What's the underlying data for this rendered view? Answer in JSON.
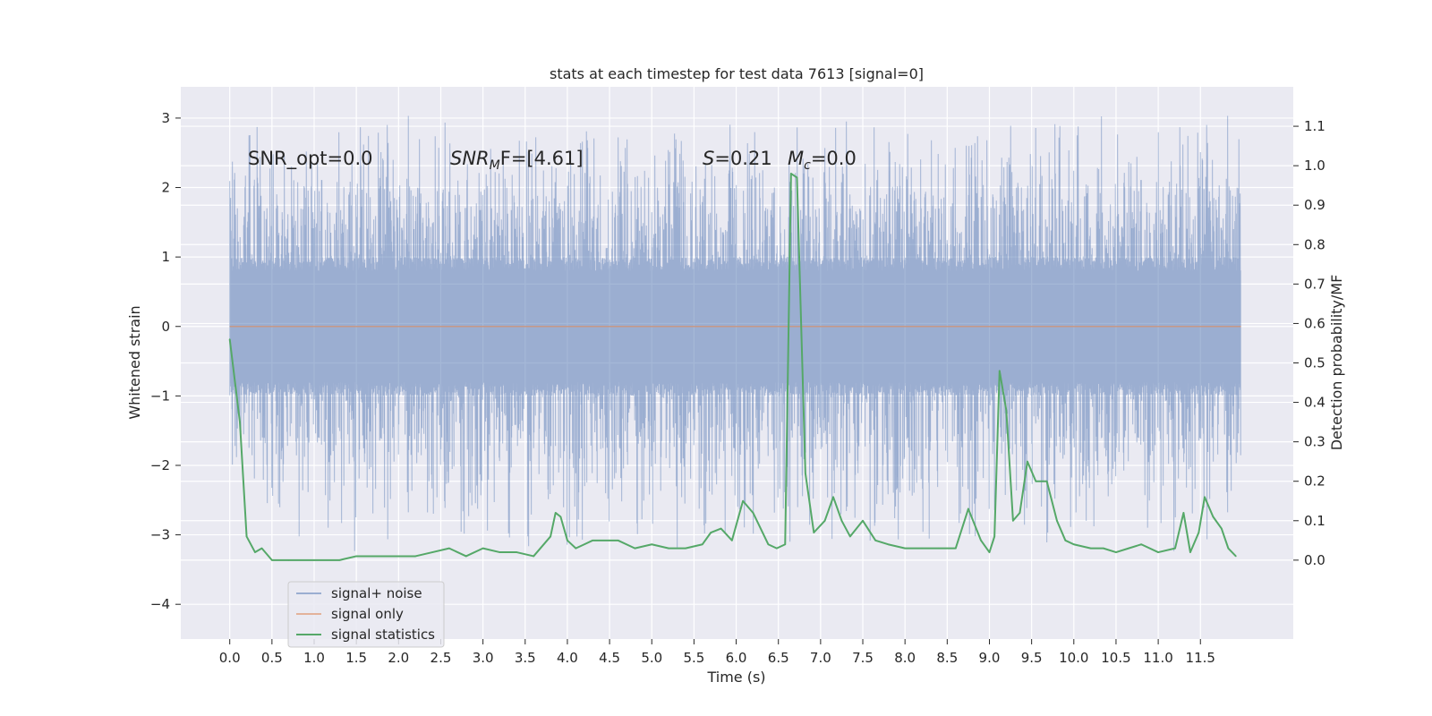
{
  "chart_data": {
    "type": "line",
    "title": "stats at each timestep for test data 7613 [signal=0]",
    "xlabel": "Time (s)",
    "ylabel": "Whitened strain",
    "ylabel_right": "Detection probability/MF",
    "xlim": [
      -0.58,
      12.6
    ],
    "ylim": [
      -4.5,
      3.45
    ],
    "ylim_right": [
      -0.2,
      1.2
    ],
    "x_ticks": [
      0.0,
      0.5,
      1.0,
      1.5,
      2.0,
      2.5,
      3.0,
      3.5,
      4.0,
      4.5,
      5.0,
      5.5,
      6.0,
      6.5,
      7.0,
      7.5,
      8.0,
      8.5,
      9.0,
      9.5,
      10.0,
      10.5,
      11.0,
      11.5
    ],
    "x_tick_labels": [
      "0.0",
      "0.5",
      "1.0",
      "1.5",
      "2.0",
      "2.5",
      "3.0",
      "3.5",
      "4.0",
      "4.5",
      "5.0",
      "5.5",
      "6.0",
      "6.5",
      "7.0",
      "7.5",
      "8.0",
      "8.5",
      "9.0",
      "9.5",
      "10.0",
      "10.5",
      "11.0",
      "11.5"
    ],
    "y_ticks": [
      -4,
      -3,
      -2,
      -1,
      0,
      1,
      2,
      3
    ],
    "y_tick_labels": [
      "−4",
      "−3",
      "−2",
      "−1",
      "0",
      "1",
      "2",
      "3"
    ],
    "y_right_ticks": [
      0.0,
      0.1,
      0.2,
      0.3,
      0.4,
      0.5,
      0.6,
      0.7,
      0.8,
      0.9,
      1.0,
      1.1
    ],
    "y_right_tick_labels": [
      "0.0",
      "0.1",
      "0.2",
      "0.3",
      "0.4",
      "0.5",
      "0.6",
      "0.7",
      "0.8",
      "0.9",
      "1.0",
      "1.1"
    ],
    "grid": true,
    "legend_position": "lower-left",
    "annotations": {
      "snr_opt": "SNR_opt=0.0",
      "snr_mf_main": "SNR",
      "snr_mf_sub": "M",
      "snr_mf_rest": "F=[4.61]",
      "s_var": "S",
      "s_rest": "=0.21",
      "mc_var": "M",
      "mc_sub": "c",
      "mc_rest": "=0.0"
    },
    "colors": {
      "background": "#eaeaf2",
      "grid": "#ffffff",
      "noise": "#4c72b0",
      "signal": "#dd8452",
      "stat": "#55a868",
      "text": "#262626"
    },
    "series": [
      {
        "name": "signal+ noise",
        "axis": "left",
        "style": "noise-band",
        "t_range": [
          0.0,
          11.98
        ],
        "typical_range": [
          -1.0,
          1.0
        ],
        "peak_range": [
          -3.6,
          3.1
        ]
      },
      {
        "name": "signal only",
        "axis": "left",
        "x": [
          0.0,
          11.98
        ],
        "y": [
          0.0,
          0.0
        ]
      },
      {
        "name": "signal statistics",
        "axis": "right",
        "x": [
          0.0,
          0.12,
          0.2,
          0.3,
          0.38,
          0.5,
          0.7,
          1.0,
          1.3,
          1.5,
          1.7,
          1.9,
          2.2,
          2.4,
          2.6,
          2.8,
          3.0,
          3.2,
          3.4,
          3.6,
          3.8,
          3.86,
          3.92,
          4.0,
          4.1,
          4.2,
          4.3,
          4.5,
          4.6,
          4.8,
          5.0,
          5.2,
          5.4,
          5.6,
          5.7,
          5.82,
          5.95,
          6.08,
          6.2,
          6.38,
          6.48,
          6.58,
          6.65,
          6.72,
          6.82,
          6.92,
          7.05,
          7.15,
          7.25,
          7.35,
          7.5,
          7.65,
          7.8,
          8.0,
          8.2,
          8.4,
          8.6,
          8.75,
          8.9,
          9.0,
          9.06,
          9.12,
          9.2,
          9.28,
          9.36,
          9.45,
          9.55,
          9.68,
          9.8,
          9.9,
          10.0,
          10.2,
          10.35,
          10.5,
          10.65,
          10.8,
          11.0,
          11.2,
          11.3,
          11.38,
          11.48,
          11.55,
          11.65,
          11.75,
          11.83,
          11.92
        ],
        "y": [
          0.56,
          0.35,
          0.06,
          0.02,
          0.03,
          0.0,
          0.0,
          0.0,
          0.0,
          0.01,
          0.01,
          0.01,
          0.01,
          0.02,
          0.03,
          0.01,
          0.03,
          0.02,
          0.02,
          0.01,
          0.06,
          0.12,
          0.11,
          0.05,
          0.03,
          0.04,
          0.05,
          0.05,
          0.05,
          0.03,
          0.04,
          0.03,
          0.03,
          0.04,
          0.07,
          0.08,
          0.05,
          0.15,
          0.12,
          0.04,
          0.03,
          0.04,
          0.98,
          0.97,
          0.22,
          0.07,
          0.1,
          0.16,
          0.1,
          0.06,
          0.1,
          0.05,
          0.04,
          0.03,
          0.03,
          0.03,
          0.03,
          0.13,
          0.05,
          0.02,
          0.06,
          0.48,
          0.38,
          0.1,
          0.12,
          0.25,
          0.2,
          0.2,
          0.1,
          0.05,
          0.04,
          0.03,
          0.03,
          0.02,
          0.03,
          0.04,
          0.02,
          0.03,
          0.12,
          0.02,
          0.07,
          0.16,
          0.11,
          0.08,
          0.03,
          0.01
        ]
      }
    ]
  }
}
